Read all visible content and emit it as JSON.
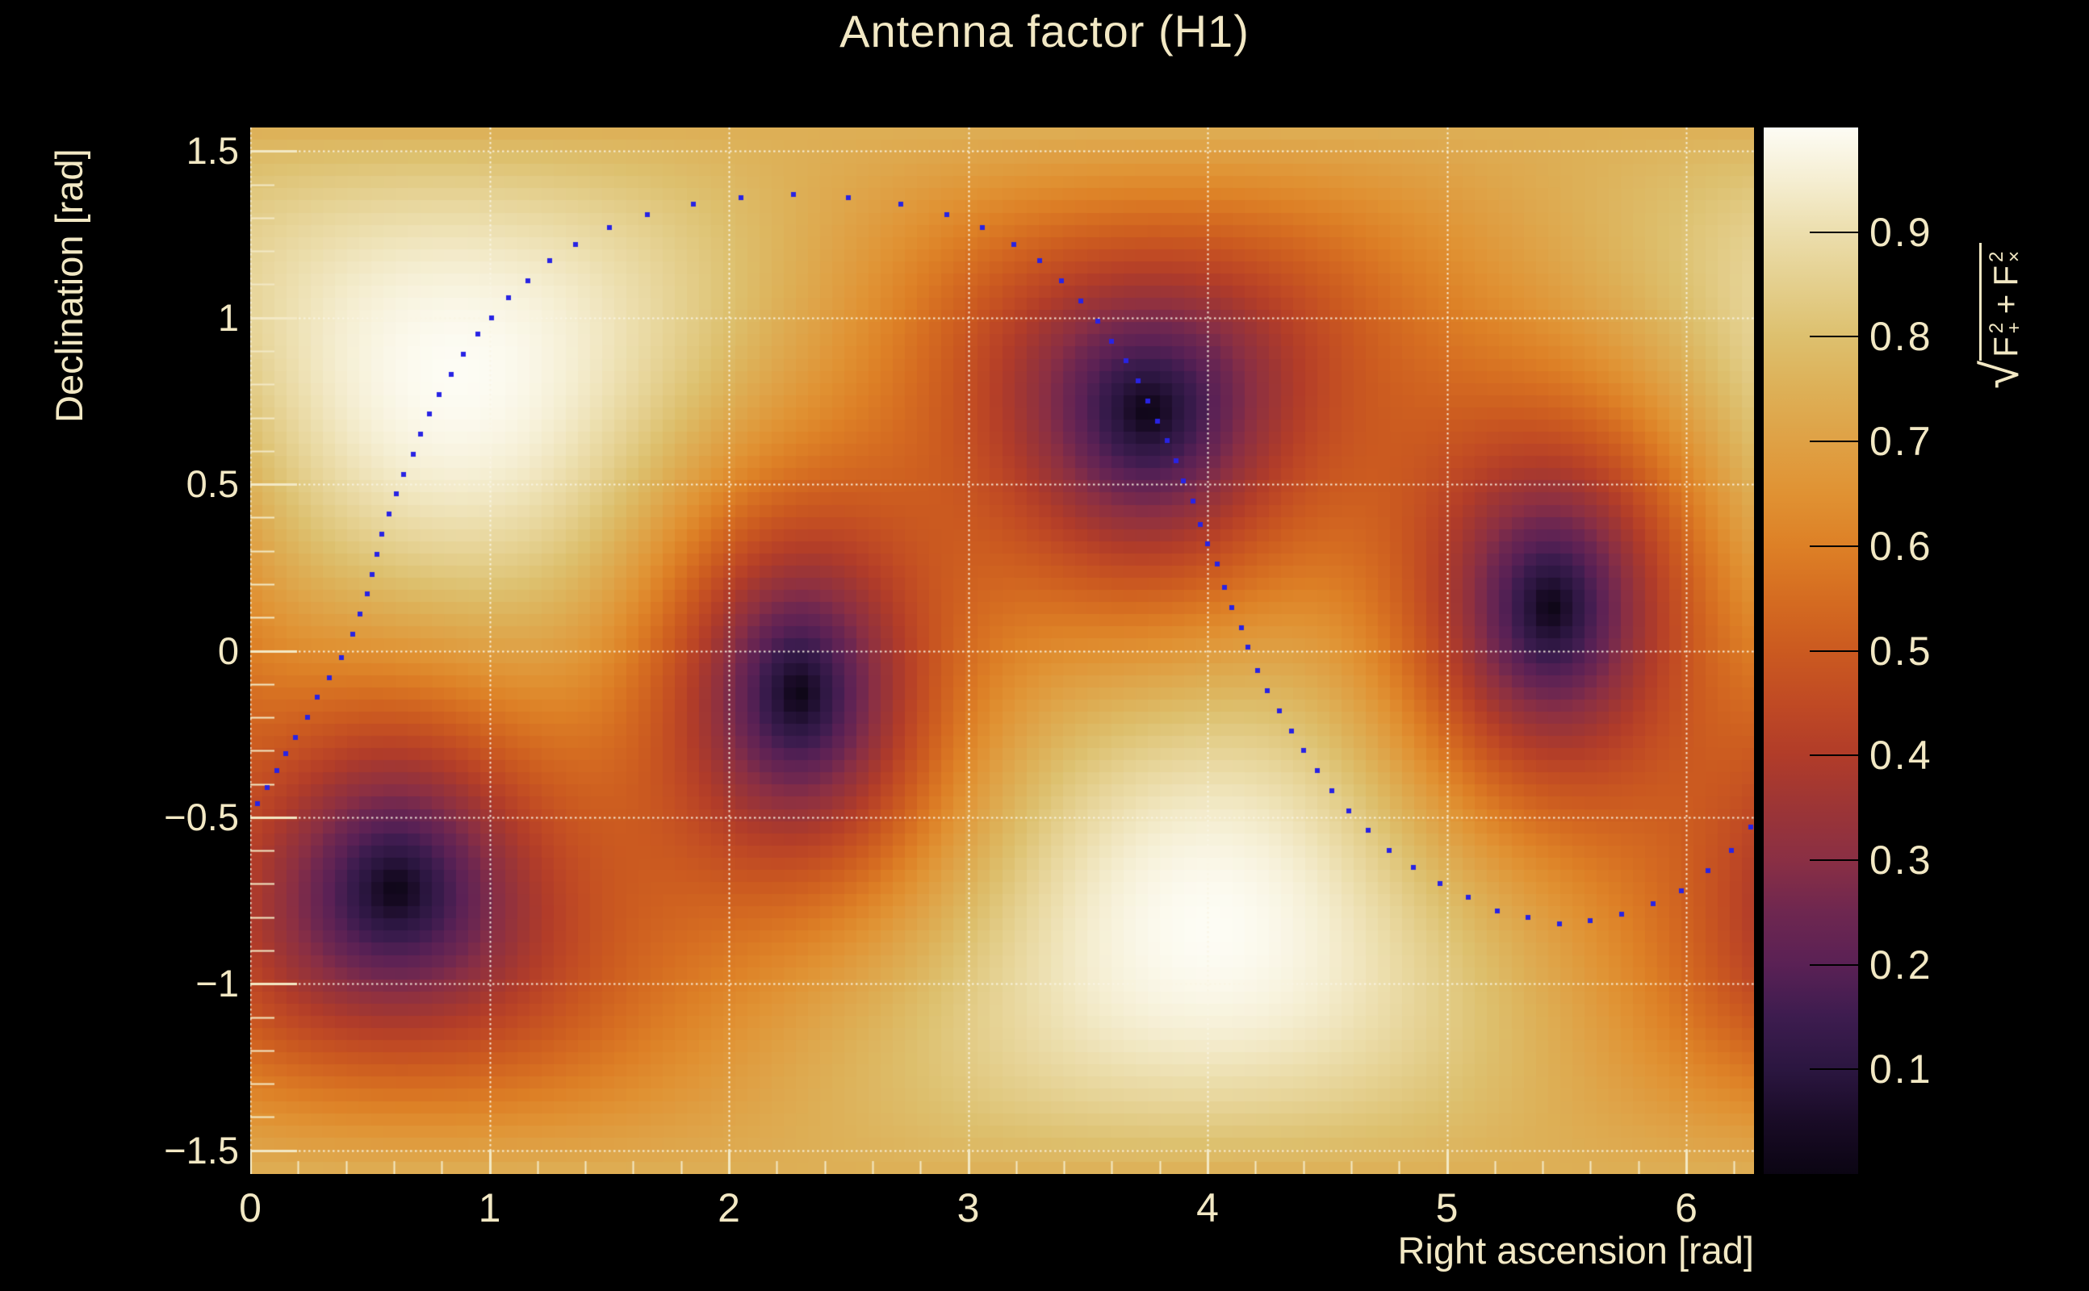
{
  "chart_data": {
    "type": "heatmap",
    "title": "Antenna factor (H1)",
    "detector": "H1",
    "xlabel": "Right ascension [rad]",
    "ylabel": "Declination [rad]",
    "zlabel": "sqrt(F_+^2 + F_x^2)",
    "zlabel_parts": {
      "radical": "√",
      "f1": "F",
      "sup1": "2",
      "sub1": "+",
      "plus": "+",
      "f2": "F",
      "sup2": "2",
      "sub2": "×"
    },
    "x_range": [
      0,
      6.2832
    ],
    "y_range": [
      -1.5708,
      1.5708
    ],
    "z_range": [
      0,
      1
    ],
    "x_ticks": [
      {
        "value": 0,
        "label": "0"
      },
      {
        "value": 1,
        "label": "1"
      },
      {
        "value": 2,
        "label": "2"
      },
      {
        "value": 3,
        "label": "3"
      },
      {
        "value": 4,
        "label": "4"
      },
      {
        "value": 5,
        "label": "5"
      },
      {
        "value": 6,
        "label": "6"
      }
    ],
    "y_ticks": [
      {
        "value": 1.5,
        "label": "1.5"
      },
      {
        "value": 1,
        "label": "1"
      },
      {
        "value": 0.5,
        "label": "0.5"
      },
      {
        "value": 0,
        "label": "0"
      },
      {
        "value": -0.5,
        "label": "−0.5"
      },
      {
        "value": -1,
        "label": "−1"
      },
      {
        "value": -1.5,
        "label": "−1.5"
      }
    ],
    "z_ticks": [
      {
        "value": 0.9,
        "label": "0.9"
      },
      {
        "value": 0.8,
        "label": "0.8"
      },
      {
        "value": 0.7,
        "label": "0.7"
      },
      {
        "value": 0.6,
        "label": "0.6"
      },
      {
        "value": 0.5,
        "label": "0.5"
      },
      {
        "value": 0.4,
        "label": "0.4"
      },
      {
        "value": 0.3,
        "label": "0.3"
      },
      {
        "value": 0.2,
        "label": "0.2"
      },
      {
        "value": 0.1,
        "label": "0.1"
      }
    ],
    "x_minor_step": 0.2,
    "y_minor_step": 0.1,
    "grid": {
      "style": "dotted",
      "x_major": [
        0,
        1,
        2,
        3,
        4,
        5,
        6
      ],
      "y_major": [
        -1.5,
        -1,
        -0.5,
        0,
        0.5,
        1,
        1.5
      ]
    },
    "bins": {
      "nx": 124,
      "ny": 86
    },
    "palette": [
      [
        0.0,
        "#0b0513"
      ],
      [
        0.05,
        "#190b26"
      ],
      [
        0.1,
        "#2b1640"
      ],
      [
        0.15,
        "#3d1c4f"
      ],
      [
        0.2,
        "#5a2155"
      ],
      [
        0.25,
        "#6e2750"
      ],
      [
        0.3,
        "#8a2f44"
      ],
      [
        0.35,
        "#9c3536"
      ],
      [
        0.4,
        "#b13c29"
      ],
      [
        0.45,
        "#c04a24"
      ],
      [
        0.5,
        "#cb5a20"
      ],
      [
        0.55,
        "#d56c21"
      ],
      [
        0.6,
        "#dd8026"
      ],
      [
        0.65,
        "#e09233"
      ],
      [
        0.7,
        "#dfa145"
      ],
      [
        0.75,
        "#ddb057"
      ],
      [
        0.8,
        "#ddc06e"
      ],
      [
        0.85,
        "#e4cf8d"
      ],
      [
        0.9,
        "#ecdead"
      ],
      [
        0.95,
        "#f5eed2"
      ],
      [
        1.0,
        "#fdfcf4"
      ]
    ],
    "pattern_nulls": [
      [
        0.61,
        -0.72
      ],
      [
        2.29,
        -0.13
      ],
      [
        3.74,
        0.76
      ],
      [
        5.43,
        0.13
      ]
    ],
    "pattern_maxima": [
      [
        0.87,
        0.83
      ],
      [
        4.01,
        -0.83
      ]
    ],
    "track": {
      "marker": "square",
      "color": "#2823e4",
      "size": 6,
      "points": [
        [
          0.03,
          -0.46
        ],
        [
          0.07,
          -0.41
        ],
        [
          0.11,
          -0.36
        ],
        [
          0.15,
          -0.31
        ],
        [
          0.19,
          -0.26
        ],
        [
          0.24,
          -0.2
        ],
        [
          0.28,
          -0.14
        ],
        [
          0.33,
          -0.08
        ],
        [
          0.38,
          -0.02
        ],
        [
          0.43,
          0.05
        ],
        [
          0.46,
          0.11
        ],
        [
          0.49,
          0.17
        ],
        [
          0.51,
          0.23
        ],
        [
          0.53,
          0.29
        ],
        [
          0.55,
          0.35
        ],
        [
          0.58,
          0.41
        ],
        [
          0.61,
          0.47
        ],
        [
          0.64,
          0.53
        ],
        [
          0.68,
          0.59
        ],
        [
          0.71,
          0.65
        ],
        [
          0.75,
          0.71
        ],
        [
          0.79,
          0.77
        ],
        [
          0.84,
          0.83
        ],
        [
          0.89,
          0.89
        ],
        [
          0.95,
          0.95
        ],
        [
          1.01,
          1.0
        ],
        [
          1.08,
          1.06
        ],
        [
          1.16,
          1.11
        ],
        [
          1.25,
          1.17
        ],
        [
          1.36,
          1.22
        ],
        [
          1.5,
          1.27
        ],
        [
          1.66,
          1.31
        ],
        [
          1.85,
          1.34
        ],
        [
          2.05,
          1.36
        ],
        [
          2.27,
          1.37
        ],
        [
          2.5,
          1.36
        ],
        [
          2.72,
          1.34
        ],
        [
          2.91,
          1.31
        ],
        [
          3.06,
          1.27
        ],
        [
          3.19,
          1.22
        ],
        [
          3.3,
          1.17
        ],
        [
          3.39,
          1.11
        ],
        [
          3.47,
          1.05
        ],
        [
          3.54,
          0.99
        ],
        [
          3.6,
          0.93
        ],
        [
          3.66,
          0.87
        ],
        [
          3.71,
          0.81
        ],
        [
          3.75,
          0.75
        ],
        [
          3.79,
          0.69
        ],
        [
          3.83,
          0.63
        ],
        [
          3.87,
          0.57
        ],
        [
          3.9,
          0.51
        ],
        [
          3.94,
          0.45
        ],
        [
          3.97,
          0.38
        ],
        [
          4.0,
          0.32
        ],
        [
          4.04,
          0.26
        ],
        [
          4.07,
          0.19
        ],
        [
          4.1,
          0.13
        ],
        [
          4.14,
          0.07
        ],
        [
          4.17,
          0.01
        ],
        [
          4.21,
          -0.06
        ],
        [
          4.25,
          -0.12
        ],
        [
          4.3,
          -0.18
        ],
        [
          4.35,
          -0.24
        ],
        [
          4.4,
          -0.3
        ],
        [
          4.46,
          -0.36
        ],
        [
          4.52,
          -0.42
        ],
        [
          4.59,
          -0.48
        ],
        [
          4.67,
          -0.54
        ],
        [
          4.76,
          -0.6
        ],
        [
          4.86,
          -0.65
        ],
        [
          4.97,
          -0.7
        ],
        [
          5.09,
          -0.74
        ],
        [
          5.21,
          -0.78
        ],
        [
          5.34,
          -0.8
        ],
        [
          5.47,
          -0.82
        ],
        [
          5.6,
          -0.81
        ],
        [
          5.73,
          -0.79
        ],
        [
          5.86,
          -0.76
        ],
        [
          5.98,
          -0.72
        ],
        [
          6.09,
          -0.66
        ],
        [
          6.19,
          -0.6
        ],
        [
          6.27,
          -0.53
        ]
      ]
    },
    "colors": {
      "background": "#000000",
      "text": "#f2e8c4",
      "grid": "rgba(250,245,228,0.9)",
      "tick": "#f3e9c5",
      "colorbar_tick": "#000000"
    }
  }
}
